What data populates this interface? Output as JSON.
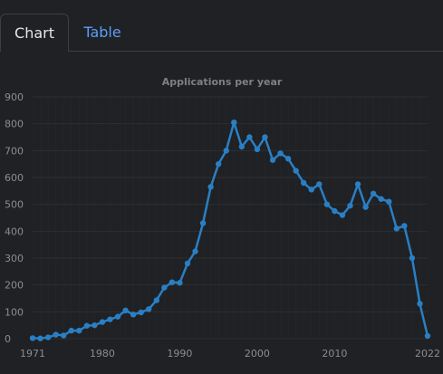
{
  "tabs": [
    {
      "label": "Chart",
      "active": true
    },
    {
      "label": "Table",
      "active": false
    }
  ],
  "colors": {
    "background": "#1f2124",
    "grid": "#2c2f33",
    "axis_text": "#8a8d91",
    "title_text": "#7d8084",
    "line": "#2a7fc4",
    "tab_active_text": "#e6e6e6",
    "tab_inactive_text": "#5b9ef5"
  },
  "chart_data": {
    "type": "line",
    "title": "Applications per year",
    "xlabel": "",
    "ylabel": "",
    "xlim": [
      1971,
      2022
    ],
    "ylim": [
      0,
      900
    ],
    "yticks": [
      0,
      100,
      200,
      300,
      400,
      500,
      600,
      700,
      800,
      900
    ],
    "xticks": [
      1971,
      1980,
      1990,
      2000,
      2010,
      2022
    ],
    "grid": true,
    "legend": "none",
    "series": [
      {
        "x": [
          1971,
          1972,
          1973,
          1974,
          1975,
          1976,
          1977,
          1978,
          1979,
          1980,
          1981,
          1982,
          1983,
          1984,
          1985,
          1986,
          1987,
          1988,
          1989,
          1990,
          1991,
          1992,
          1993,
          1994,
          1995,
          1996,
          1997,
          1998,
          1999,
          2000,
          2001,
          2002,
          2003,
          2004,
          2005,
          2006,
          2007,
          2008,
          2009,
          2010,
          2011,
          2012,
          2013,
          2014,
          2015,
          2016,
          2017,
          2018,
          2019,
          2020,
          2021,
          2022
        ],
        "values": [
          2,
          1,
          5,
          15,
          12,
          30,
          30,
          48,
          50,
          62,
          72,
          82,
          105,
          90,
          98,
          110,
          143,
          190,
          210,
          208,
          280,
          325,
          430,
          565,
          650,
          700,
          805,
          715,
          750,
          705,
          750,
          665,
          690,
          670,
          625,
          580,
          555,
          575,
          500,
          475,
          460,
          495,
          575,
          490,
          540,
          520,
          510,
          410,
          420,
          300,
          130,
          10
        ]
      }
    ]
  }
}
